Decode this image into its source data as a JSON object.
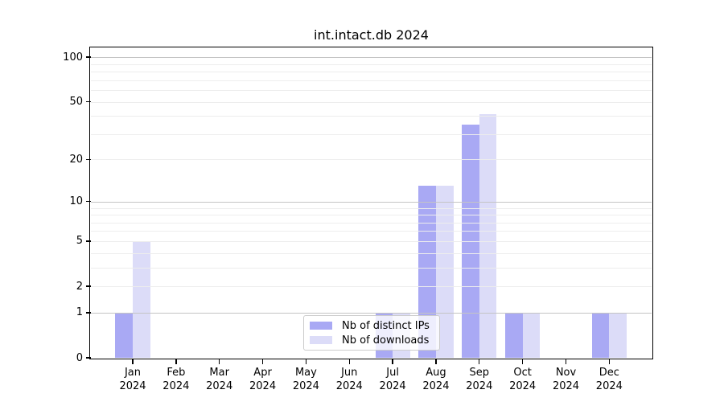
{
  "chart_data": {
    "type": "bar",
    "title": "int.intact.db 2024",
    "year": "2024",
    "categories": [
      "Jan",
      "Feb",
      "Mar",
      "Apr",
      "May",
      "Jun",
      "Jul",
      "Aug",
      "Sep",
      "Oct",
      "Nov",
      "Dec"
    ],
    "series": [
      {
        "name": "Nb of distinct IPs",
        "color": "#a9a9f4",
        "values": [
          1,
          0,
          0,
          0,
          0,
          0,
          1,
          13,
          35,
          1,
          0,
          1
        ]
      },
      {
        "name": "Nb of downloads",
        "color": "#dcdcf8",
        "values": [
          5,
          0,
          0,
          0,
          0,
          0,
          1,
          13,
          41,
          1,
          0,
          1
        ]
      }
    ],
    "yscale": "log1p",
    "ylim": [
      0,
      115
    ],
    "ytick_labels": [
      "0",
      "1",
      "2",
      "5",
      "10",
      "20",
      "50",
      "100"
    ],
    "ytick_values": [
      0,
      1,
      2,
      5,
      10,
      20,
      50,
      100
    ],
    "grid_minor_values": [
      2,
      3,
      4,
      5,
      6,
      7,
      8,
      9,
      20,
      30,
      40,
      50,
      60,
      70,
      80,
      90
    ],
    "grid_major_values": [
      1,
      10,
      100
    ],
    "grid": "on",
    "legend_position": "lower center"
  }
}
